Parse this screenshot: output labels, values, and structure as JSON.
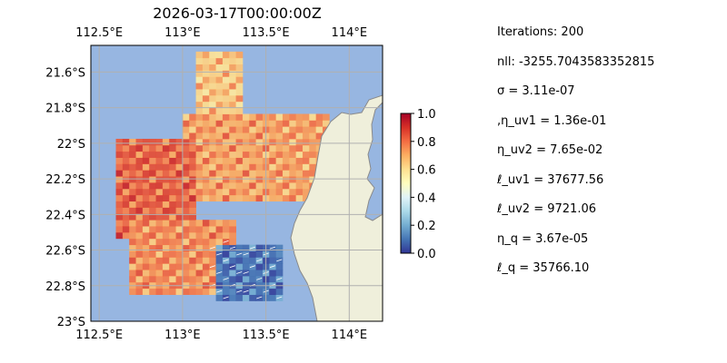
{
  "chart_data": {
    "type": "heatmap",
    "title": "2026-03-17T00:00:00Z",
    "projection": "map",
    "x_axis": {
      "unit": "degrees east",
      "range": [
        112.45,
        114.2
      ],
      "ticks": [
        112.5,
        113.0,
        113.5,
        114.0
      ],
      "tick_labels": [
        "112.5°E",
        "113°E",
        "113.5°E",
        "114°E"
      ],
      "positions": [
        "top",
        "bottom"
      ]
    },
    "y_axis": {
      "unit": "degrees south",
      "range": [
        -23.0,
        -21.45
      ],
      "ticks": [
        -21.6,
        -21.8,
        -22.0,
        -22.2,
        -22.4,
        -22.6,
        -22.8,
        -23.0
      ],
      "tick_labels": [
        "21.6°S",
        "21.8°S",
        "22°S",
        "22.2°S",
        "22.4°S",
        "22.6°S",
        "22.8°S",
        "23°S"
      ]
    },
    "grid": true,
    "colorbar": {
      "colormap": "RdYlBu_r",
      "range": [
        0.0,
        1.0
      ],
      "ticks": [
        "0.0",
        "0.2",
        "0.4",
        "0.6",
        "0.8",
        "1.0"
      ]
    },
    "colors": {
      "ocean": "#97b6e1",
      "land": "#efefdb",
      "coastline": "#8a8a8a",
      "grid": "#b0b0b0"
    },
    "field_regions": [
      {
        "description": "northern yellow plume",
        "lon": [
          113.05,
          113.35
        ],
        "lat": [
          -21.95,
          -21.5
        ],
        "value": 0.65
      },
      {
        "description": "central orange band",
        "lon": [
          113.0,
          113.85
        ],
        "lat": [
          -22.35,
          -21.85
        ],
        "value": 0.72
      },
      {
        "description": "western red-orange patch",
        "lon": [
          112.6,
          113.05
        ],
        "lat": [
          -22.55,
          -21.98
        ],
        "value": 0.82
      },
      {
        "description": "southern orange band",
        "lon": [
          112.65,
          113.3
        ],
        "lat": [
          -22.85,
          -22.45
        ],
        "value": 0.75
      },
      {
        "description": "south-east blue pocket",
        "lon": [
          113.2,
          113.6
        ],
        "lat": [
          -22.9,
          -22.6
        ],
        "value": 0.1
      }
    ]
  },
  "params": {
    "iterations": "Iterations: 200",
    "nll": "nll: -3255.7043583352815",
    "sigma": "σ = 3.11e-07",
    "eta_uv1": ",η_uv1 = 1.36e-01",
    "eta_uv2": "η_uv2 = 7.65e-02",
    "ell_uv1": "ℓ_uv1 = 37677.56",
    "ell_uv2": "ℓ_uv2 = 9721.06",
    "eta_q": "η_q = 3.67e-05",
    "ell_q": "ℓ_q = 35766.10"
  }
}
